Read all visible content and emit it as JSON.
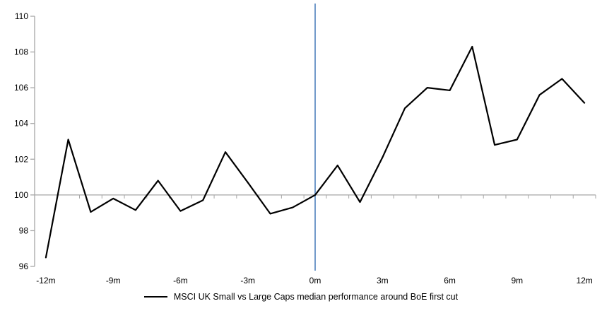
{
  "chart_data": {
    "type": "line",
    "title": "",
    "x": [
      -12,
      -11,
      -10,
      -9,
      -8,
      -7,
      -6,
      -5,
      -4,
      -3,
      -2,
      -1,
      0,
      1,
      2,
      3,
      4,
      5,
      6,
      7,
      8,
      9,
      10,
      11,
      12
    ],
    "series": [
      {
        "name": "MSCI UK Small vs Large Caps median performance around BoE first cut",
        "color": "#000000",
        "values": [
          96.5,
          103.1,
          99.05,
          99.8,
          99.15,
          100.8,
          99.1,
          99.7,
          102.4,
          100.7,
          98.95,
          99.3,
          100,
          101.65,
          99.6,
          102.1,
          104.85,
          106,
          105.85,
          108.3,
          102.8,
          103.1,
          105.6,
          106.5,
          105.15
        ]
      }
    ],
    "x_ticks": [
      {
        "value": -12,
        "label": "-12m"
      },
      {
        "value": -9,
        "label": "-9m"
      },
      {
        "value": -6,
        "label": "-6m"
      },
      {
        "value": -3,
        "label": "-3m"
      },
      {
        "value": 0,
        "label": "0m"
      },
      {
        "value": 3,
        "label": "3m"
      },
      {
        "value": 6,
        "label": "6m"
      },
      {
        "value": 9,
        "label": "9m"
      },
      {
        "value": 12,
        "label": "12m"
      }
    ],
    "y_ticks": [
      96,
      98,
      100,
      102,
      104,
      106,
      108,
      110
    ],
    "ylim": [
      96,
      110
    ],
    "baseline_value": 100,
    "event_line": {
      "x": 0,
      "color": "#4f81bd"
    },
    "axis_color": "#a6a6a6",
    "text_color": "#000000",
    "grid": "baseline-only",
    "legend_position": "bottom"
  }
}
